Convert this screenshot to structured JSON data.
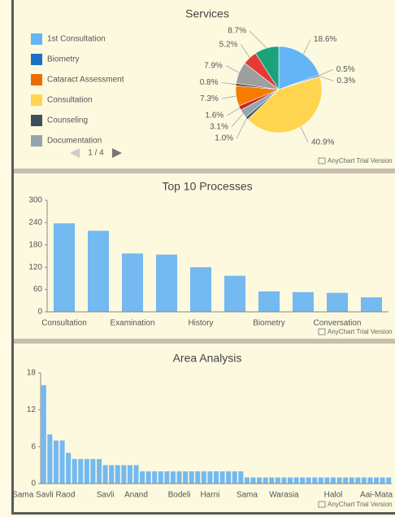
{
  "chart_data": [
    {
      "type": "pie",
      "title": "Services",
      "categories": [
        "1st Consultation",
        "Biometry",
        "Cataract Assessment",
        "Consultation",
        "Counseling",
        "Documentation",
        null,
        null,
        null,
        null,
        null,
        null
      ],
      "values": [
        18.6,
        0.5,
        0.3,
        40.9,
        1.0,
        3.1,
        1.6,
        7.3,
        0.8,
        7.9,
        5.2,
        8.7
      ],
      "value_labels": [
        "18.6%",
        "0.5%",
        "0.3%",
        "40.9%",
        "1.0%",
        "3.1%",
        "1.6%",
        "7.3%",
        "0.8%",
        "7.9%",
        "5.2%",
        "8.7%"
      ],
      "colors": [
        "#64b5f6",
        "#1e6fc8",
        "#ef6c00",
        "#ffd54f",
        "#3e4e5a",
        "#95a5ad",
        "#c62828",
        "#f57c00",
        "#4e342e",
        "#9e9e9e",
        "#e53935",
        "#1aa37a"
      ],
      "legend_page": "1 / 4",
      "credit": "AnyChart Trial Version"
    },
    {
      "type": "bar",
      "title": "Top 10 Processes",
      "categories": [
        "Consultation",
        null,
        "Examination",
        null,
        "History",
        null,
        "Biometry",
        null,
        "Conversation",
        null
      ],
      "values": [
        238,
        218,
        157,
        154,
        120,
        97,
        55,
        53,
        51,
        39
      ],
      "color": "#74b9f0",
      "ylim": [
        0,
        300
      ],
      "yticks": [
        0,
        60,
        120,
        180,
        240,
        300
      ],
      "credit": "AnyChart Trial Version"
    },
    {
      "type": "bar",
      "title": "Area Analysis",
      "categories": [
        "Sama Savli Raod",
        null,
        null,
        null,
        null,
        null,
        null,
        null,
        null,
        null,
        "Savli",
        null,
        null,
        null,
        null,
        "Anand",
        null,
        null,
        null,
        null,
        null,
        null,
        "Bodeli",
        null,
        null,
        null,
        null,
        "Harni",
        null,
        null,
        null,
        null,
        null,
        "Sama",
        null,
        null,
        null,
        null,
        null,
        "Warasia",
        null,
        null,
        null,
        null,
        null,
        null,
        null,
        "Halol",
        null,
        null,
        null,
        null,
        null,
        null,
        "Aai-Mata",
        null,
        null
      ],
      "values": [
        16,
        8,
        7,
        7,
        5,
        4,
        4,
        4,
        4,
        4,
        3,
        3,
        3,
        3,
        3,
        3,
        2,
        2,
        2,
        2,
        2,
        2,
        2,
        2,
        2,
        2,
        2,
        2,
        2,
        2,
        2,
        2,
        2,
        1,
        1,
        1,
        1,
        1,
        1,
        1,
        1,
        1,
        1,
        1,
        1,
        1,
        1,
        1,
        1,
        1,
        1,
        1,
        1,
        1,
        1,
        1,
        1
      ],
      "color": "#74b9f0",
      "ylim": [
        0,
        18
      ],
      "yticks": [
        0,
        6,
        12,
        18
      ],
      "credit": "AnyChart Trial Version"
    }
  ]
}
